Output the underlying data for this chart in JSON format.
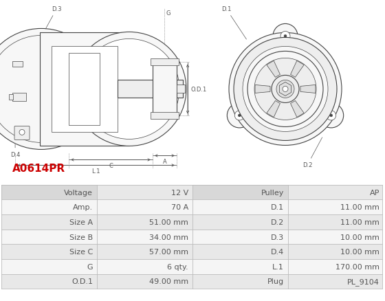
{
  "title": "A0614PR",
  "title_color": "#cc0000",
  "image_bg": "#ffffff",
  "table": {
    "left_labels": [
      "Voltage",
      "Amp.",
      "Size A",
      "Size B",
      "Size C",
      "G",
      "O.D.1"
    ],
    "left_values": [
      "12 V",
      "70 A",
      "51.00 mm",
      "34.00 mm",
      "57.00 mm",
      "6 qty.",
      "49.00 mm"
    ],
    "right_labels": [
      "Pulley",
      "D.1",
      "D.2",
      "D.3",
      "D.4",
      "L.1",
      "Plug"
    ],
    "right_values": [
      "AP",
      "11.00 mm",
      "11.00 mm",
      "10.00 mm",
      "10.00 mm",
      "170.00 mm",
      "PL_9104"
    ]
  },
  "row_colors": [
    "#e8e8e8",
    "#f5f5f5"
  ],
  "header_color": "#d8d8d8",
  "border_color": "#bbbbbb",
  "text_color": "#555555",
  "label_color": "#444444",
  "font_size": 8,
  "edge_color": "#444444",
  "light_fill": "#f7f7f7",
  "mid_fill": "#eeeeee",
  "dark_fill": "#e0e0e0"
}
